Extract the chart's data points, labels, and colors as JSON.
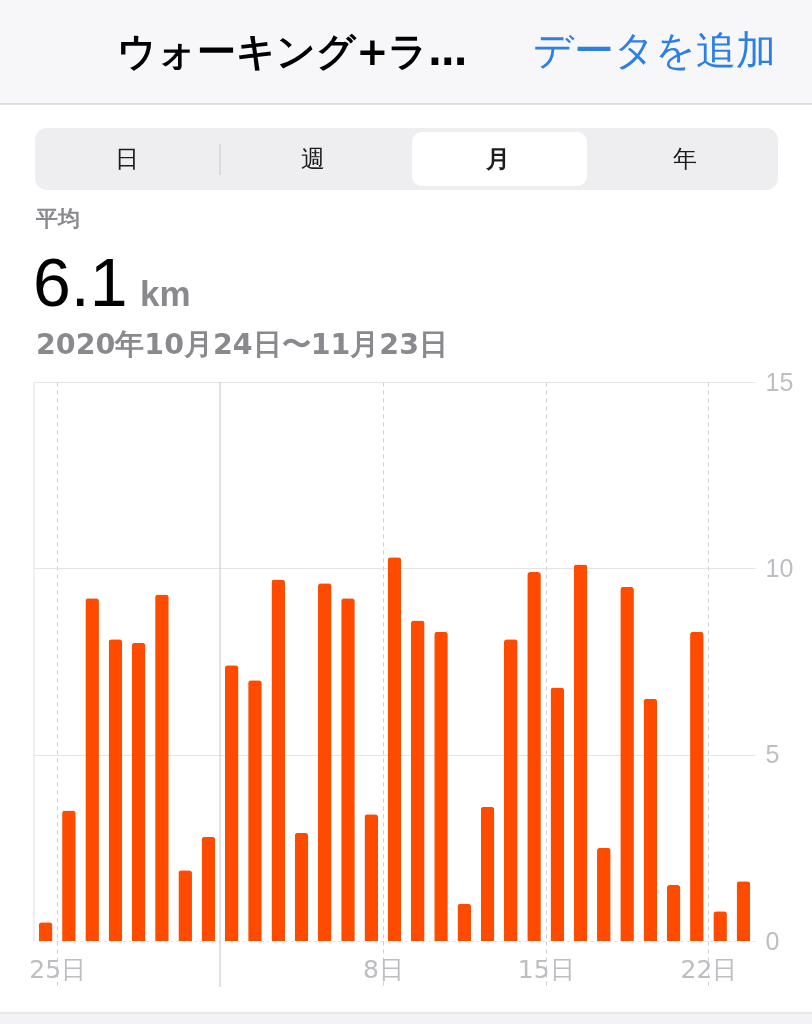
{
  "chart_data": {
    "type": "bar",
    "title": "ウォーキング+ラ…",
    "subtitle": "2020年10月24日〜11月23日",
    "annotations": [
      "データを追加",
      "日",
      "週",
      "月",
      "年",
      "平均",
      "6.1",
      "km"
    ],
    "x": [
      "2020-10-24T12:00",
      "2020-10-25T12:00",
      "2020-10-26T12:00",
      "2020-10-27T12:00",
      "2020-10-28T12:00",
      "2020-10-29T12:00",
      "2020-10-30T12:00",
      "2020-10-31T12:00",
      "2020-11-01T12:00",
      "2020-11-02T12:00",
      "2020-11-03T12:00",
      "2020-11-04T12:00",
      "2020-11-05T12:00",
      "2020-11-06T12:00",
      "2020-11-07T12:00",
      "2020-11-08T12:00",
      "2020-11-09T12:00",
      "2020-11-10T12:00",
      "2020-11-11T12:00",
      "2020-11-12T12:00",
      "2020-11-13T12:00",
      "2020-11-14T12:00",
      "2020-11-15T12:00",
      "2020-11-16T12:00",
      "2020-11-17T12:00",
      "2020-11-18T12:00",
      "2020-11-19T12:00",
      "2020-11-20T12:00",
      "2020-11-21T12:00",
      "2020-11-22T12:00",
      "2020-11-23T12:00"
    ],
    "values": [
      0.5,
      3.5,
      9.2,
      8.1,
      8.0,
      9.3,
      1.9,
      2.8,
      7.4,
      7.0,
      9.7,
      2.9,
      9.6,
      9.2,
      3.4,
      10.3,
      8.6,
      8.3,
      1.0,
      3.6,
      8.1,
      9.9,
      6.8,
      10.1,
      2.5,
      9.5,
      6.5,
      1.5,
      8.3,
      0.8,
      1.6
    ],
    "color": "#ff4b00",
    "xlim": [
      "2020-10-24",
      "2020-11-24"
    ],
    "xticks": [
      {
        "value": "2020-10-25",
        "label": "25日"
      },
      {
        "value": "2020-11-08",
        "label": "8日"
      },
      {
        "value": "2020-11-15",
        "label": "15日"
      },
      {
        "value": "2020-11-22",
        "label": "22日"
      }
    ],
    "ylim": [
      0,
      15
    ],
    "yticks": [
      0,
      5,
      10,
      15
    ],
    "grid": true,
    "ref_lines": [
      {
        "axis": "x",
        "value": "2020-11-01",
        "line_style": "solid",
        "color": "#cfcfd4"
      }
    ]
  }
}
